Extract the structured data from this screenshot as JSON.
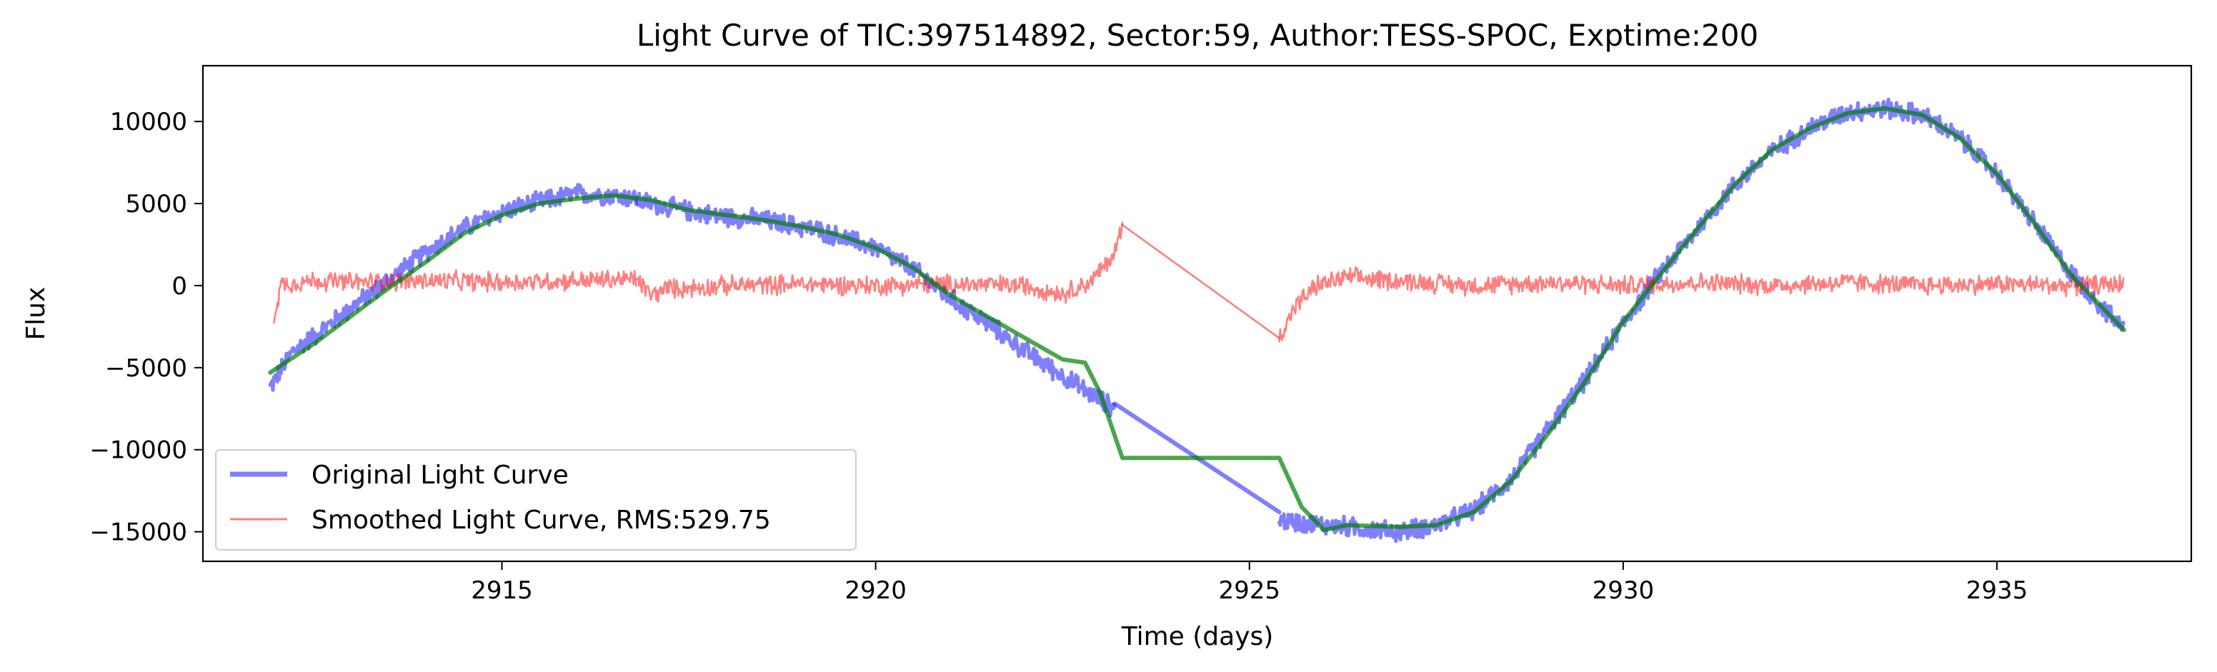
{
  "chart_data": {
    "type": "line",
    "title": "Light Curve of TIC:397514892, Sector:59, Author:TESS-SPOC, Exptime:200",
    "xlabel": "Time (days)",
    "ylabel": "Flux",
    "xlim": [
      2911.0,
      2937.6
    ],
    "ylim": [
      -16800,
      13400
    ],
    "xticks": [
      2915,
      2920,
      2925,
      2930,
      2935
    ],
    "yticks": [
      10000,
      5000,
      0,
      -5000,
      -10000,
      -15000
    ],
    "xtick_labels": [
      "2915",
      "2920",
      "2925",
      "2930",
      "2935"
    ],
    "ytick_labels": [
      "10000",
      "5000",
      "0",
      "−5000",
      "−10000",
      "−15000"
    ],
    "grid": false,
    "legend_position": "lower-left",
    "series": [
      {
        "name": "Original Light Curve",
        "color": "#0000ff",
        "opacity": 0.5,
        "style": "thick-noisy",
        "noise_amplitude": 700,
        "segments": [
          {
            "x": [
              2911.9,
              2912.2,
              2912.6,
              2913.0,
              2913.5,
              2914.0,
              2914.5,
              2915.0,
              2915.5,
              2916.0,
              2916.5,
              2916.8
            ],
            "y": [
              -6200,
              -4000,
              -2700,
              -1300,
              400,
              2100,
              3500,
              4500,
              5100,
              5600,
              5500,
              5300
            ]
          },
          {
            "x": [
              2916.8,
              2917.2,
              2917.8,
              2918.5,
              2919.2,
              2920.0,
              2920.5,
              2921.0,
              2921.5,
              2922.0,
              2922.4,
              2922.8,
              2923.2
            ],
            "y": [
              5200,
              4800,
              4300,
              4000,
              3400,
              2300,
              1000,
              -800,
              -2300,
              -4000,
              -5200,
              -6400,
              -7500
            ]
          },
          {
            "x": [
              2923.2,
              2925.4
            ],
            "y": [
              -7200,
              -13800
            ]
          },
          {
            "x": [
              2925.4,
              2925.8,
              2926.3,
              2927.0,
              2927.5,
              2928.0,
              2928.5,
              2929.0,
              2929.5,
              2930.0,
              2930.5,
              2931.0,
              2931.5,
              2932.0,
              2932.5,
              2933.0,
              2933.5,
              2934.0,
              2934.5,
              2935.0,
              2935.5,
              2936.0,
              2936.5,
              2936.7
            ],
            "y": [
              -14300,
              -14500,
              -14700,
              -15000,
              -14600,
              -13700,
              -11800,
              -8700,
              -5700,
              -2300,
              800,
              3500,
              6200,
              8200,
              9600,
              10600,
              10800,
              10400,
              9000,
              6800,
              3800,
              700,
              -1800,
              -2700
            ]
          }
        ]
      },
      {
        "name": "Smoothed Light Curve, RMS:529.75",
        "color": "#ff0000",
        "opacity": 0.5,
        "style": "thin-noisy",
        "noise_amplitude": 700,
        "segments": [
          {
            "x": [
              2911.95,
              2912.05,
              2912.5,
              2913.0,
              2914.0,
              2915.0,
              2916.0,
              2916.8
            ],
            "y": [
              -1800,
              100,
              300,
              200,
              300,
              200,
              300,
              400
            ]
          },
          {
            "x": [
              2916.8,
              2917.0,
              2917.3
            ],
            "y": [
              400,
              -600,
              0
            ]
          },
          {
            "x": [
              2917.3,
              2918.0,
              2919.0,
              2920.0,
              2921.0,
              2922.0,
              2922.5,
              2922.9,
              2923.2,
              2923.3
            ],
            "y": [
              -200,
              0,
              100,
              0,
              100,
              0,
              -500,
              300,
              2000,
              3700
            ]
          },
          {
            "x": [
              2923.3,
              2925.4
            ],
            "y": [
              3700,
              -3200
            ]
          },
          {
            "x": [
              2925.4,
              2925.6,
              2925.9,
              2926.3,
              2927.0,
              2928.0,
              2929.0,
              2930.0,
              2931.0,
              2932.0,
              2933.0,
              2934.0,
              2935.0,
              2936.0,
              2936.7
            ],
            "y": [
              -3200,
              -1300,
              0,
              500,
              300,
              0,
              200,
              0,
              200,
              0,
              200,
              0,
              100,
              0,
              100
            ]
          }
        ]
      },
      {
        "color": "#008000",
        "opacity": 0.7,
        "style": "smooth",
        "segments": [
          {
            "x": [
              2911.9,
              2912.5,
              2913.0,
              2913.5,
              2914.0,
              2914.5,
              2915.0,
              2915.5,
              2916.0,
              2916.5,
              2917.0,
              2917.5,
              2918.0,
              2918.5,
              2919.0,
              2919.5,
              2920.0,
              2920.5,
              2921.0,
              2921.5,
              2922.0,
              2922.5,
              2922.8,
              2923.0,
              2923.3,
              2924.5,
              2925.4,
              2925.7,
              2926.0,
              2926.3,
              2927.0,
              2927.5,
              2928.0,
              2928.5,
              2929.0,
              2929.5,
              2930.0,
              2930.5,
              2931.0,
              2931.5,
              2932.0,
              2932.5,
              2933.0,
              2933.5,
              2934.0,
              2934.5,
              2935.0,
              2935.5,
              2936.0,
              2936.7
            ],
            "y": [
              -5300,
              -3500,
              -1800,
              -100,
              1500,
              3200,
              4300,
              5000,
              5300,
              5500,
              5200,
              4600,
              4300,
              4000,
              3600,
              3100,
              2300,
              1100,
              -600,
              -1900,
              -3200,
              -4500,
              -4700,
              -6500,
              -10500,
              -10500,
              -10500,
              -13500,
              -14900,
              -14600,
              -14700,
              -14600,
              -13800,
              -11900,
              -9000,
              -5800,
              -2200,
              700,
              3500,
              6200,
              8300,
              9600,
              10500,
              10800,
              10400,
              9000,
              6800,
              3800,
              600,
              -2700
            ]
          }
        ]
      }
    ]
  }
}
